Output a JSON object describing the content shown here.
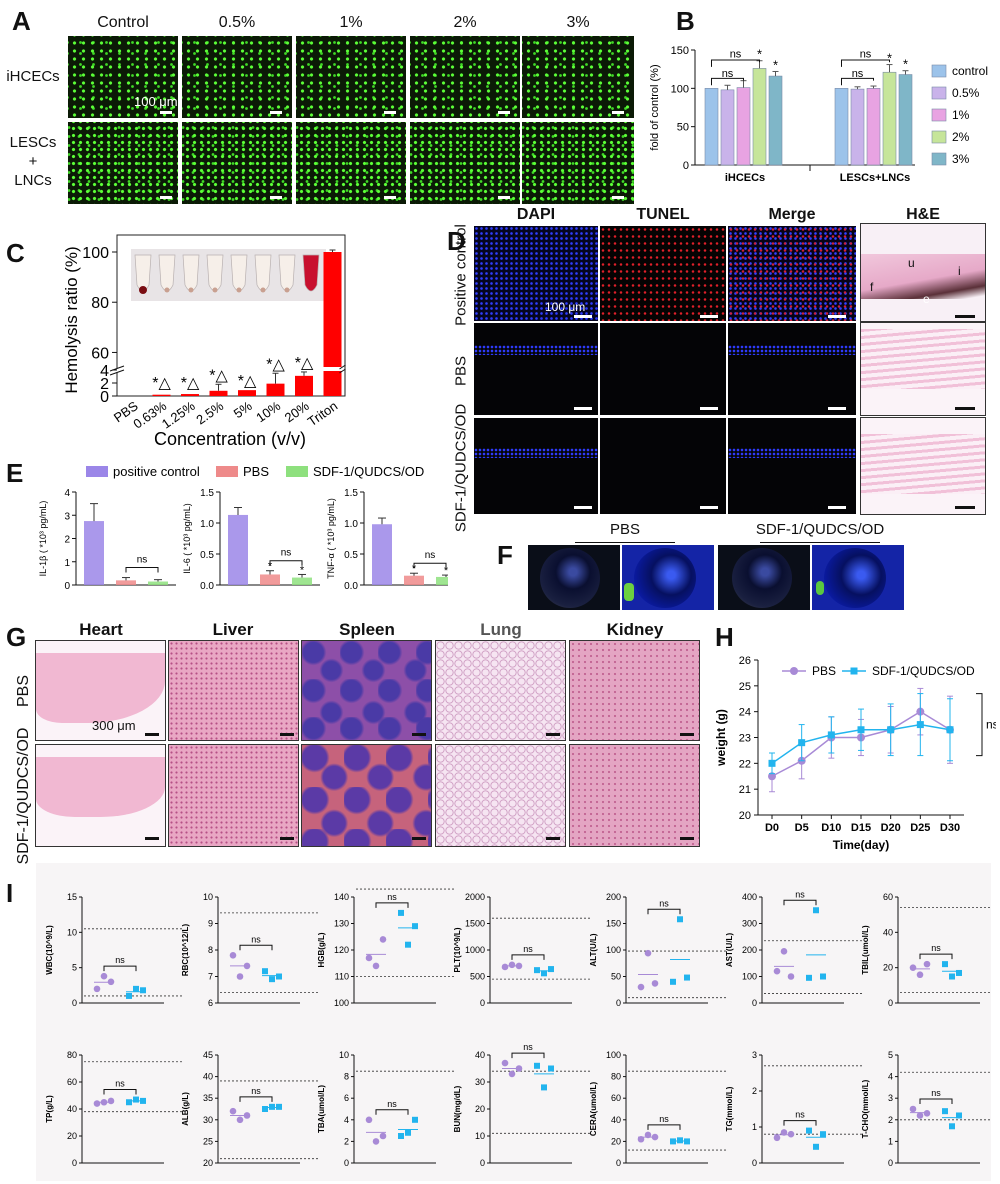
{
  "panel_letters": [
    "A",
    "B",
    "C",
    "D",
    "E",
    "F",
    "G",
    "H",
    "I"
  ],
  "A": {
    "columns": [
      "Control",
      "0.5%",
      "1%",
      "2%",
      "3%"
    ],
    "rows": [
      "iHCECs",
      "LESCs\n+\nLNCs"
    ],
    "scale": "100 μm"
  },
  "D": {
    "columns": [
      "DAPI",
      "TUNEL",
      "Merge",
      "H&E"
    ],
    "rows": [
      "Positive control",
      "PBS",
      "SDF-1/QUDCS/OD"
    ],
    "scale": "100  μm",
    "he_letters": [
      "u",
      "i",
      "f",
      "e"
    ]
  },
  "F": {
    "labels": [
      "PBS",
      "SDF-1/QUDCS/OD"
    ]
  },
  "G": {
    "columns": [
      "Heart",
      "Liver",
      "Spleen",
      "Lung",
      "Kidney"
    ],
    "rows": [
      "PBS",
      "SDF-1/QUDCS/OD"
    ],
    "scale": "300 μm"
  },
  "colors": {
    "purple": "#9b86e8",
    "pink": "#ee8a8a",
    "green": "#8ee07e",
    "blue": "#9cc3ea",
    "violet": "#c9b3ea",
    "magenta": "#e8a3e2",
    "lime": "#c6e59a",
    "teal": "#7fb6c8",
    "red": "#ff0000",
    "dotPurple": "#a88ad6",
    "dotCyan": "#22b4ee"
  },
  "chart_data": [
    {
      "id": "B",
      "type": "bar",
      "ylabel": "fold of control  (%)",
      "categories": [
        "iHCECs",
        "LESCs+LNCs"
      ],
      "ylim": [
        0,
        150
      ],
      "yticks": [
        0,
        50,
        100,
        150
      ],
      "legend": [
        "control",
        "0.5%",
        "1%",
        "2%",
        "3%"
      ],
      "series": [
        {
          "name": "control",
          "values": [
            100,
            100
          ],
          "err": [
            0,
            0
          ]
        },
        {
          "name": "0.5%",
          "values": [
            98,
            99
          ],
          "err": [
            6,
            3
          ]
        },
        {
          "name": "1%",
          "values": [
            101,
            100
          ],
          "err": [
            9,
            3
          ]
        },
        {
          "name": "2%",
          "values": [
            126,
            121
          ],
          "err": [
            10,
            10
          ]
        },
        {
          "name": "3%",
          "values": [
            116,
            118
          ],
          "err": [
            6,
            5
          ]
        }
      ],
      "annotations": {
        "stars": [
          "*",
          "*",
          "*",
          "*"
        ],
        "ns": [
          "ns",
          "ns",
          "ns",
          "ns"
        ]
      }
    },
    {
      "id": "C",
      "type": "bar",
      "ylabel": "Hemolysis ratio (%)",
      "xlabel": "Concentration (v/v)",
      "categories": [
        "PBS",
        "0.63%",
        "1.25%",
        "2.5%",
        "5%",
        "10%",
        "20%",
        "Triton"
      ],
      "values": [
        0,
        0.2,
        0.3,
        0.8,
        0.9,
        1.9,
        3.1,
        100
      ],
      "err": [
        0,
        0,
        0,
        1.0,
        0,
        1.6,
        0.6,
        0.8
      ],
      "yticks_low": [
        0,
        2,
        4
      ],
      "yticks_high": [
        60,
        80,
        100
      ],
      "markers": [
        "*△",
        "*△",
        "*△",
        "*△",
        "*△",
        "*△"
      ]
    },
    {
      "id": "E1",
      "type": "bar",
      "ylabel": "IL-1β ( *10³ pg/mL)",
      "legend": [
        "positive control",
        "PBS",
        "SDF-1/QUDCS/OD"
      ],
      "values": [
        2.75,
        0.2,
        0.15
      ],
      "err": [
        0.75,
        0.12,
        0.08
      ],
      "ylim": [
        0,
        4
      ],
      "yticks": [
        0,
        1,
        2,
        3,
        4
      ],
      "annotations": [
        "ns"
      ]
    },
    {
      "id": "E2",
      "type": "bar",
      "ylabel": "IL-6 ( *10³ pg/mL)",
      "values": [
        1.13,
        0.17,
        0.12
      ],
      "err": [
        0.12,
        0.06,
        0.05
      ],
      "ylim": [
        0,
        1.5
      ],
      "yticks": [
        "0.0",
        "0.5",
        "1.0",
        "1.5"
      ],
      "annotations": [
        "*",
        "*",
        "ns"
      ]
    },
    {
      "id": "E3",
      "type": "bar",
      "ylabel": "TNF-α ( *10³ pg/mL)",
      "values": [
        0.98,
        0.15,
        0.13
      ],
      "err": [
        0.1,
        0.04,
        0.03
      ],
      "ylim": [
        0,
        1.5
      ],
      "yticks": [
        "0.0",
        "0.5",
        "1.0",
        "1.5"
      ],
      "annotations": [
        "*",
        "*",
        "ns"
      ]
    },
    {
      "id": "H",
      "type": "line",
      "xlabel": "Time(day)",
      "ylabel": "weight  (g)",
      "x": [
        "D0",
        "D5",
        "D10",
        "D15",
        "D20",
        "D25",
        "D30"
      ],
      "ylim": [
        20,
        26
      ],
      "yticks": [
        20,
        21,
        22,
        23,
        24,
        25,
        26
      ],
      "series": [
        {
          "name": "PBS",
          "values": [
            21.5,
            22.1,
            23.0,
            23.0,
            23.3,
            24.0,
            23.3
          ],
          "err": [
            0.6,
            0.7,
            0.8,
            0.7,
            0.9,
            0.9,
            1.3
          ]
        },
        {
          "name": "SDF-1/QUDCS/OD",
          "values": [
            22.0,
            22.8,
            23.1,
            23.3,
            23.3,
            23.5,
            23.3
          ],
          "err": [
            0.4,
            0.7,
            0.7,
            0.8,
            1.0,
            1.2,
            1.2
          ]
        }
      ],
      "annotations": [
        "ns"
      ]
    },
    {
      "id": "I",
      "type": "scatter",
      "plots": [
        {
          "ylabel": "WBC(10^9/L)",
          "ylim": [
            0,
            15
          ],
          "yticks": [
            0,
            5,
            10,
            15
          ],
          "ref": [
            1,
            10.5
          ],
          "a": [
            2,
            3.8,
            3
          ],
          "b": [
            1,
            2,
            1.8
          ],
          "ns": true
        },
        {
          "ylabel": "RBC(10^12/L)",
          "ylim": [
            6,
            10
          ],
          "yticks": [
            6,
            7,
            8,
            9,
            10
          ],
          "ref": [
            6.4,
            9.4
          ],
          "a": [
            7.8,
            7.0,
            7.4
          ],
          "b": [
            7.2,
            6.9,
            7.0
          ],
          "ns": true
        },
        {
          "ylabel": "HGB(g/L)",
          "ylim": [
            100,
            140
          ],
          "yticks": [
            100,
            110,
            120,
            130,
            140
          ],
          "ref": [
            110,
            143
          ],
          "a": [
            117,
            114,
            124
          ],
          "b": [
            134,
            122,
            129
          ],
          "ns": true
        },
        {
          "ylabel": "PLT(10^9/L)",
          "ylim": [
            0,
            2000
          ],
          "yticks": [
            0,
            500,
            1000,
            1500,
            2000
          ],
          "ref": [
            450,
            1600
          ],
          "a": [
            680,
            720,
            700
          ],
          "b": [
            620,
            560,
            640
          ],
          "ns": true
        },
        {
          "ylabel": "ALT(U/L)",
          "ylim": [
            0,
            200
          ],
          "yticks": [
            0,
            50,
            100,
            150,
            200
          ],
          "ref": [
            10,
            98
          ],
          "a": [
            30,
            94,
            37
          ],
          "b": [
            40,
            158,
            48
          ],
          "ns": true
        },
        {
          "ylabel": "AST(U/L)",
          "ylim": [
            0,
            400
          ],
          "yticks": [
            0,
            100,
            200,
            300,
            400
          ],
          "ref": [
            36,
            235
          ],
          "a": [
            120,
            195,
            100
          ],
          "b": [
            95,
            350,
            100
          ],
          "ns": true
        },
        {
          "ylabel": "TBIL(umol/L)",
          "ylim": [
            0,
            60
          ],
          "yticks": [
            0,
            20,
            40,
            60
          ],
          "ref": [
            6,
            54
          ],
          "a": [
            20,
            16,
            22
          ],
          "b": [
            22,
            15,
            17
          ],
          "ns": true
        },
        {
          "ylabel": "TP(g/L)",
          "ylim": [
            0,
            80
          ],
          "yticks": [
            0,
            20,
            40,
            60,
            80
          ],
          "ref": [
            38,
            75
          ],
          "a": [
            44,
            45,
            46
          ],
          "b": [
            45,
            47,
            46
          ],
          "ns": true
        },
        {
          "ylabel": "ALB(g/L)",
          "ylim": [
            20,
            45
          ],
          "yticks": [
            20,
            25,
            30,
            35,
            40,
            45
          ],
          "ref": [
            21,
            39
          ],
          "a": [
            32,
            30,
            31
          ],
          "b": [
            32.5,
            33,
            33
          ],
          "ns": true
        },
        {
          "ylabel": "TBA(umol/L)",
          "ylim": [
            0,
            10
          ],
          "yticks": [
            0,
            2,
            4,
            6,
            8,
            10
          ],
          "ref": [
            8.5
          ],
          "a": [
            4,
            2,
            2.5
          ],
          "b": [
            2.5,
            2.8,
            4
          ],
          "ns": true
        },
        {
          "ylabel": "BUN(mg/dL)",
          "ylim": [
            0,
            40
          ],
          "yticks": [
            0,
            10,
            20,
            30,
            40
          ],
          "ref": [
            11,
            34
          ],
          "a": [
            37,
            33,
            35
          ],
          "b": [
            36,
            28,
            35
          ],
          "ns": true
        },
        {
          "ylabel": "CERA(umol/L)",
          "ylim": [
            0,
            100
          ],
          "yticks": [
            0,
            20,
            40,
            60,
            80,
            100
          ],
          "ref": [
            12,
            85
          ],
          "a": [
            22,
            26,
            24
          ],
          "b": [
            20,
            21,
            20
          ],
          "ns": true
        },
        {
          "ylabel": "TG(mmol/L)",
          "ylim": [
            0,
            3
          ],
          "yticks": [
            0,
            1,
            2,
            3
          ],
          "ref": [
            0.8,
            2.7
          ],
          "a": [
            0.7,
            0.85,
            0.8
          ],
          "b": [
            0.9,
            0.45,
            0.8
          ],
          "ns": true
        },
        {
          "ylabel": "T-CHO(mmol/L)",
          "ylim": [
            0,
            5
          ],
          "yticks": [
            0,
            1,
            2,
            3,
            4,
            5
          ],
          "ref": [
            2.0,
            4.2
          ],
          "a": [
            2.5,
            2.2,
            2.3
          ],
          "b": [
            2.4,
            1.7,
            2.2
          ],
          "ns": true
        }
      ]
    }
  ]
}
